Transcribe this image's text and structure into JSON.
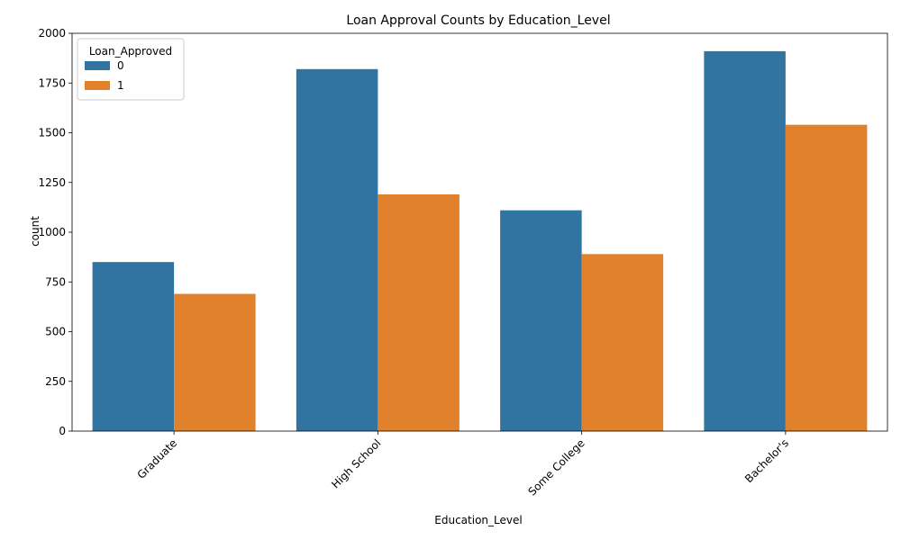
{
  "chart_data": {
    "type": "bar",
    "title": "Loan Approval Counts by Education_Level",
    "xlabel": "Education_Level",
    "ylabel": "count",
    "categories": [
      "Graduate",
      "High School",
      "Some College",
      "Bachelor's"
    ],
    "series": [
      {
        "name": "0",
        "color": "#3274a1",
        "values": [
          850,
          1820,
          1110,
          1910
        ]
      },
      {
        "name": "1",
        "color": "#e1812c",
        "values": [
          690,
          1190,
          890,
          1540
        ]
      }
    ],
    "ylim": [
      0,
      2000
    ],
    "yticks": [
      "0",
      "250",
      "500",
      "750",
      "1000",
      "1250",
      "1500",
      "1750",
      "2000"
    ],
    "legend": {
      "title": "Loan_Approved",
      "position": "top-left"
    },
    "grid": false
  }
}
